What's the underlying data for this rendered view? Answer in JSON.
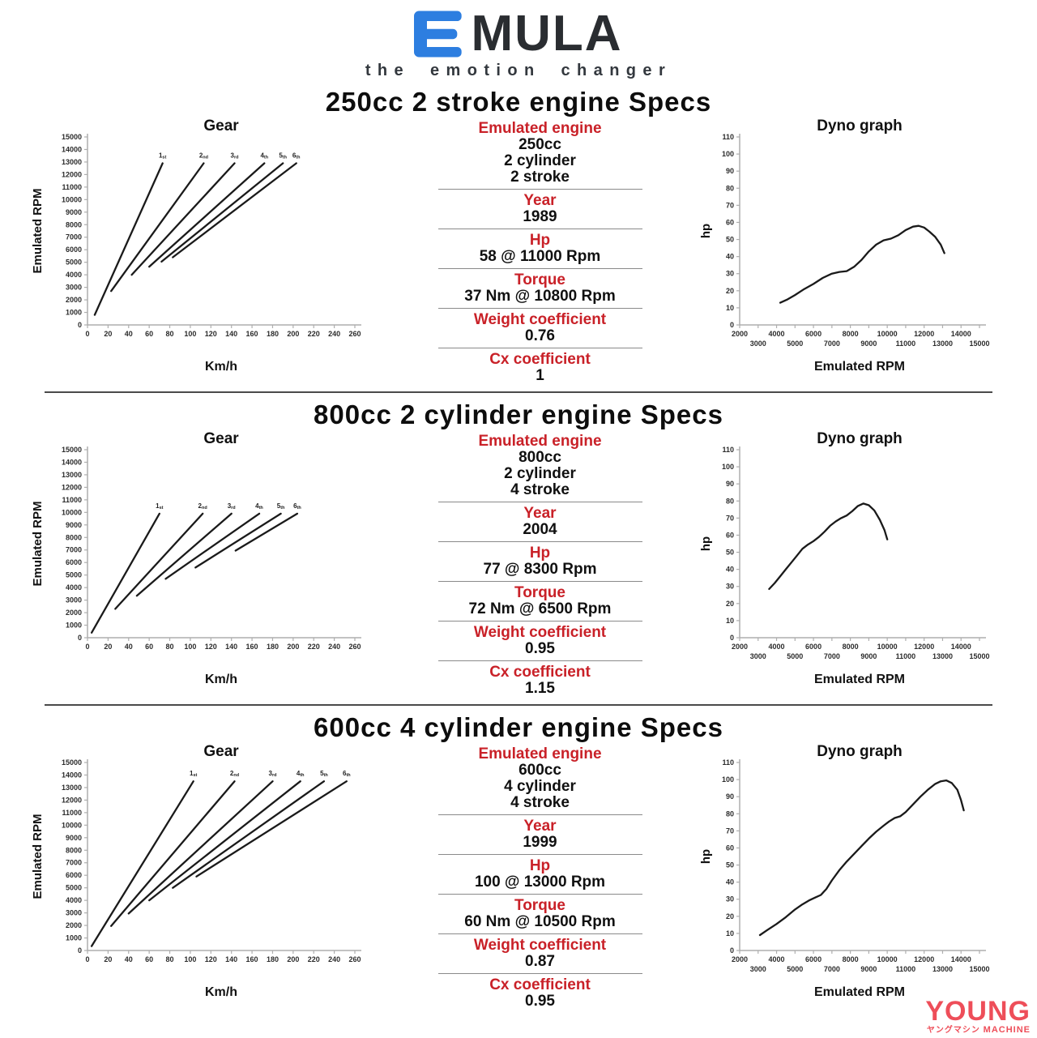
{
  "header": {
    "logo_text": "MULA",
    "tagline": "the emotion changer",
    "logo_accent_color": "#2d7ee0"
  },
  "watermark": {
    "title": "YOUNG",
    "subtitle_jp": "ヤングマシン",
    "subtitle_en": "MACHINE",
    "color": "#ee4e59"
  },
  "colors": {
    "heading_red": "#c92128",
    "series_line": "#1a1a1a",
    "axis": "#aeaeae",
    "tick_text": "#2b2b2b"
  },
  "sections": [
    {
      "title": "250cc 2 stroke engine Specs",
      "gear_chart": "gear-250",
      "dyno_chart": "dyno-250",
      "specs": [
        {
          "label": "Emulated engine",
          "values": [
            "250cc",
            "2 cylinder",
            "2 stroke"
          ]
        },
        {
          "label": "Year",
          "values": [
            "1989"
          ]
        },
        {
          "label": "Hp",
          "values": [
            "58 @ 11000 Rpm"
          ]
        },
        {
          "label": "Torque",
          "values": [
            "37 Nm @ 10800 Rpm"
          ]
        },
        {
          "label": "Weight coefficient",
          "values": [
            "0.76"
          ]
        },
        {
          "label": "Cx coefficient",
          "values": [
            "1"
          ]
        }
      ]
    },
    {
      "title": "800cc 2 cylinder engine Specs",
      "gear_chart": "gear-800",
      "dyno_chart": "dyno-800",
      "specs": [
        {
          "label": "Emulated engine",
          "values": [
            "800cc",
            "2 cylinder",
            "4 stroke"
          ]
        },
        {
          "label": "Year",
          "values": [
            "2004"
          ]
        },
        {
          "label": "Hp",
          "values": [
            "77 @ 8300 Rpm"
          ]
        },
        {
          "label": "Torque",
          "values": [
            "72 Nm @ 6500 Rpm"
          ]
        },
        {
          "label": "Weight coefficient",
          "values": [
            "0.95"
          ]
        },
        {
          "label": "Cx coefficient",
          "values": [
            "1.15"
          ]
        }
      ]
    },
    {
      "title": "600cc 4 cylinder engine Specs",
      "gear_chart": "gear-600",
      "dyno_chart": "dyno-600",
      "specs": [
        {
          "label": "Emulated engine",
          "values": [
            "600cc",
            "4 cylinder",
            "4 stroke"
          ]
        },
        {
          "label": "Year",
          "values": [
            "1999"
          ]
        },
        {
          "label": "Hp",
          "values": [
            "100 @ 13000 Rpm"
          ]
        },
        {
          "label": "Torque",
          "values": [
            "60 Nm @ 10500 Rpm"
          ]
        },
        {
          "label": "Weight coefficient",
          "values": [
            "0.87"
          ]
        },
        {
          "label": "Cx coefficient",
          "values": [
            "0.95"
          ]
        }
      ]
    }
  ],
  "chart_data": [
    {
      "id": "gear-250",
      "type": "line",
      "title": "Gear",
      "xlabel": "Km/h",
      "ylabel": "Emulated RPM",
      "xlim": [
        0,
        260
      ],
      "xtick_step": 20,
      "ylim": [
        0,
        15000
      ],
      "ytick_step": 1000,
      "grid": false,
      "label_series": true,
      "series": [
        {
          "name": "1st",
          "points": [
            [
              7,
              800
            ],
            [
              73,
              12900
            ]
          ]
        },
        {
          "name": "2nd",
          "points": [
            [
              23,
              2700
            ],
            [
              113,
              12900
            ]
          ]
        },
        {
          "name": "3rd",
          "points": [
            [
              43,
              4000
            ],
            [
              143,
              12900
            ]
          ]
        },
        {
          "name": "4th",
          "points": [
            [
              60,
              4650
            ],
            [
              172,
              12900
            ]
          ]
        },
        {
          "name": "5th",
          "points": [
            [
              72,
              5050
            ],
            [
              190,
              12900
            ]
          ]
        },
        {
          "name": "6th",
          "points": [
            [
              83,
              5400
            ],
            [
              203,
              12900
            ]
          ]
        }
      ]
    },
    {
      "id": "dyno-250",
      "type": "line",
      "title": "Dyno graph",
      "xlabel": "Emulated RPM",
      "ylabel": "hp",
      "xlim": [
        2000,
        15000
      ],
      "xtick_step": 1000,
      "staggered_x": true,
      "ylim": [
        0,
        110
      ],
      "ytick_step": 10,
      "grid": false,
      "series": [
        {
          "name": "power",
          "points": [
            [
              4200,
              13
            ],
            [
              4600,
              15
            ],
            [
              5000,
              17.5
            ],
            [
              5500,
              21
            ],
            [
              6000,
              24
            ],
            [
              6500,
              27.5
            ],
            [
              7000,
              30
            ],
            [
              7400,
              31
            ],
            [
              7800,
              31.5
            ],
            [
              8200,
              34
            ],
            [
              8600,
              38
            ],
            [
              9000,
              43
            ],
            [
              9400,
              47
            ],
            [
              9800,
              49.5
            ],
            [
              10200,
              50.5
            ],
            [
              10600,
              52.5
            ],
            [
              11000,
              55.5
            ],
            [
              11400,
              57.5
            ],
            [
              11700,
              58
            ],
            [
              12000,
              57
            ],
            [
              12300,
              54.5
            ],
            [
              12600,
              51.5
            ],
            [
              12900,
              47
            ],
            [
              13100,
              42
            ]
          ]
        }
      ]
    },
    {
      "id": "gear-800",
      "type": "line",
      "title": "Gear",
      "xlabel": "Km/h",
      "ylabel": "Emulated RPM",
      "xlim": [
        0,
        260
      ],
      "xtick_step": 20,
      "ylim": [
        0,
        15000
      ],
      "ytick_step": 1000,
      "grid": false,
      "label_series": true,
      "series": [
        {
          "name": "1st",
          "points": [
            [
              4,
              400
            ],
            [
              70,
              9900
            ]
          ]
        },
        {
          "name": "2nd",
          "points": [
            [
              27,
              2300
            ],
            [
              112,
              9900
            ]
          ]
        },
        {
          "name": "3rd",
          "points": [
            [
              48,
              3350
            ],
            [
              140,
              9900
            ]
          ]
        },
        {
          "name": "4th",
          "points": [
            [
              76,
              4700
            ],
            [
              167,
              9900
            ]
          ]
        },
        {
          "name": "5th",
          "points": [
            [
              105,
              5600
            ],
            [
              188,
              9900
            ]
          ]
        },
        {
          "name": "6th",
          "points": [
            [
              144,
              6950
            ],
            [
              204,
              9900
            ]
          ]
        }
      ]
    },
    {
      "id": "dyno-800",
      "type": "line",
      "title": "Dyno graph",
      "xlabel": "Emulated RPM",
      "ylabel": "hp",
      "xlim": [
        2000,
        15000
      ],
      "xtick_step": 1000,
      "staggered_x": true,
      "ylim": [
        0,
        110
      ],
      "ytick_step": 10,
      "grid": false,
      "series": [
        {
          "name": "power",
          "points": [
            [
              3600,
              28.5
            ],
            [
              3900,
              32
            ],
            [
              4200,
              36
            ],
            [
              4500,
              40
            ],
            [
              4800,
              44
            ],
            [
              5100,
              48
            ],
            [
              5400,
              52
            ],
            [
              5700,
              54.5
            ],
            [
              6000,
              56.5
            ],
            [
              6300,
              59
            ],
            [
              6600,
              62
            ],
            [
              6900,
              65.5
            ],
            [
              7200,
              68
            ],
            [
              7500,
              70
            ],
            [
              7800,
              71.5
            ],
            [
              8100,
              74
            ],
            [
              8400,
              77
            ],
            [
              8700,
              78.5
            ],
            [
              9000,
              77.5
            ],
            [
              9300,
              74.5
            ],
            [
              9600,
              69
            ],
            [
              9850,
              63
            ],
            [
              10000,
              57.5
            ]
          ]
        }
      ]
    },
    {
      "id": "gear-600",
      "type": "line",
      "title": "Gear",
      "xlabel": "Km/h",
      "ylabel": "Emulated RPM",
      "xlim": [
        0,
        260
      ],
      "xtick_step": 20,
      "ylim": [
        0,
        15000
      ],
      "ytick_step": 1000,
      "grid": false,
      "label_series": true,
      "series": [
        {
          "name": "1st",
          "points": [
            [
              4,
              350
            ],
            [
              103,
              13500
            ]
          ]
        },
        {
          "name": "2nd",
          "points": [
            [
              23,
              1950
            ],
            [
              143,
              13500
            ]
          ]
        },
        {
          "name": "3rd",
          "points": [
            [
              40,
              2950
            ],
            [
              180,
              13500
            ]
          ]
        },
        {
          "name": "4th",
          "points": [
            [
              60,
              4000
            ],
            [
              207,
              13500
            ]
          ]
        },
        {
          "name": "5th",
          "points": [
            [
              83,
              5000
            ],
            [
              230,
              13500
            ]
          ]
        },
        {
          "name": "6th",
          "points": [
            [
              106,
              5900
            ],
            [
              252,
              13500
            ]
          ]
        }
      ]
    },
    {
      "id": "dyno-600",
      "type": "line",
      "title": "Dyno graph",
      "xlabel": "Emulated RPM",
      "ylabel": "hp",
      "xlim": [
        2000,
        15000
      ],
      "xtick_step": 1000,
      "staggered_x": true,
      "ylim": [
        0,
        110
      ],
      "ytick_step": 10,
      "grid": false,
      "series": [
        {
          "name": "power",
          "points": [
            [
              3100,
              9
            ],
            [
              3500,
              12
            ],
            [
              4000,
              15.5
            ],
            [
              4500,
              19.5
            ],
            [
              5000,
              24
            ],
            [
              5400,
              27
            ],
            [
              5800,
              29.5
            ],
            [
              6100,
              31
            ],
            [
              6400,
              32.5
            ],
            [
              6700,
              36
            ],
            [
              7000,
              41
            ],
            [
              7400,
              47
            ],
            [
              7800,
              52
            ],
            [
              8200,
              56.5
            ],
            [
              8600,
              61
            ],
            [
              9000,
              65.5
            ],
            [
              9400,
              69.5
            ],
            [
              9800,
              73
            ],
            [
              10100,
              75.5
            ],
            [
              10400,
              77.5
            ],
            [
              10700,
              78.5
            ],
            [
              11000,
              81
            ],
            [
              11400,
              85.5
            ],
            [
              11800,
              90
            ],
            [
              12200,
              94
            ],
            [
              12600,
              97.5
            ],
            [
              12900,
              99
            ],
            [
              13200,
              99.5
            ],
            [
              13500,
              98
            ],
            [
              13800,
              94
            ],
            [
              14000,
              88
            ],
            [
              14150,
              82
            ]
          ]
        }
      ]
    }
  ]
}
